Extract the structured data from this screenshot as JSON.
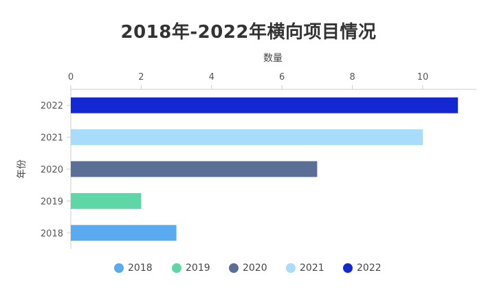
{
  "chart_data": {
    "type": "bar",
    "orientation": "horizontal",
    "title": "2018年-2022年横向项目情况",
    "xlabel": "数量",
    "ylabel": "年份",
    "x_axis_position": "top",
    "xlim": [
      0,
      11.5
    ],
    "x_ticks": [
      0,
      2,
      4,
      6,
      8,
      10
    ],
    "categories": [
      "2018",
      "2019",
      "2020",
      "2021",
      "2022"
    ],
    "values": [
      3,
      2,
      7,
      10,
      11
    ],
    "colors": [
      "#5aaaf0",
      "#5ed6a6",
      "#5a6e96",
      "#a8dcfa",
      "#1428d2"
    ],
    "legend": [
      "2018",
      "2019",
      "2020",
      "2021",
      "2022"
    ],
    "legend_position": "bottom",
    "grid": false
  }
}
